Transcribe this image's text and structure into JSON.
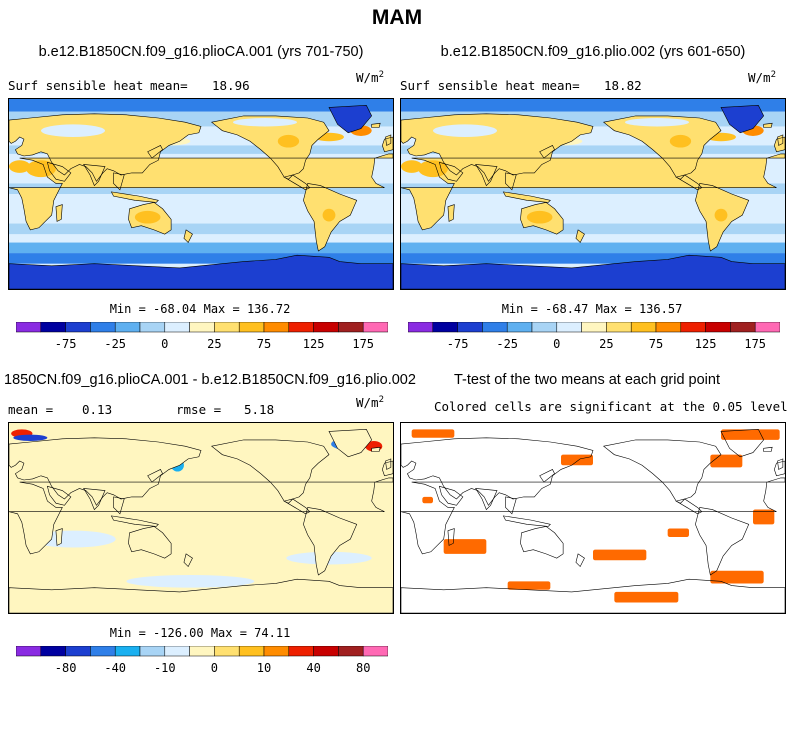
{
  "figure": {
    "title": "MAM"
  },
  "chart_data": [
    {
      "type": "heatmap",
      "title": "b.e12.B1850CN.f09_g16.plioCA.001 (yrs 701-750)",
      "variable": "Surf sensible heat",
      "mean_label": "mean=",
      "mean": "18.96",
      "units_base": "W/m",
      "units_exp": "2",
      "min_label": "Min = -68.04 Max = 136.72",
      "colorbar_ticks": [
        "-75",
        "-25",
        "0",
        "25",
        "75",
        "125",
        "175"
      ],
      "colors": [
        "#8a2be2",
        "#0000a0",
        "#1c3fd0",
        "#2f7fe8",
        "#5fb0f0",
        "#a8d4f5",
        "#dcefff",
        "#fff6c0",
        "#ffe070",
        "#ffc020",
        "#ff8c00",
        "#ee2000",
        "#c80000",
        "#a02020",
        "#ff69b4"
      ]
    },
    {
      "type": "heatmap",
      "title": "b.e12.B1850CN.f09_g16.plio.002 (yrs 601-650)",
      "variable": "Surf sensible heat",
      "mean_label": "mean=",
      "mean": "18.82",
      "units_base": "W/m",
      "units_exp": "2",
      "min_label": "Min = -68.47 Max = 136.57",
      "colorbar_ticks": [
        "-75",
        "-25",
        "0",
        "25",
        "75",
        "125",
        "175"
      ],
      "colors": [
        "#8a2be2",
        "#0000a0",
        "#1c3fd0",
        "#2f7fe8",
        "#5fb0f0",
        "#a8d4f5",
        "#dcefff",
        "#fff6c0",
        "#ffe070",
        "#ffc020",
        "#ff8c00",
        "#ee2000",
        "#c80000",
        "#a02020",
        "#ff69b4"
      ]
    },
    {
      "type": "heatmap",
      "title": "1850CN.f09_g16.plioCA.001 - b.e12.B1850CN.f09_g16.plio.002",
      "mean_label": "mean =",
      "mean": "0.13",
      "rmse_label": "rmse =",
      "rmse": "5.18",
      "units_base": "W/m",
      "units_exp": "2",
      "min_label": "Min = -126.00 Max = 74.11",
      "colorbar_ticks": [
        "-80",
        "-40",
        "-10",
        "0",
        "10",
        "40",
        "80"
      ],
      "colors": [
        "#8a2be2",
        "#0000a0",
        "#1c3fd0",
        "#2f7fe8",
        "#1ab0f0",
        "#a8d4f5",
        "#dcefff",
        "#fff6c0",
        "#ffe070",
        "#ffc020",
        "#ff8c00",
        "#ee2000",
        "#c80000",
        "#a02020",
        "#ff69b4"
      ]
    },
    {
      "type": "heatmap",
      "title": "T-test of the two means at each grid point",
      "subtitle": "Colored cells are significant at the 0.05 level",
      "significant_color": "#ff6a00"
    }
  ]
}
